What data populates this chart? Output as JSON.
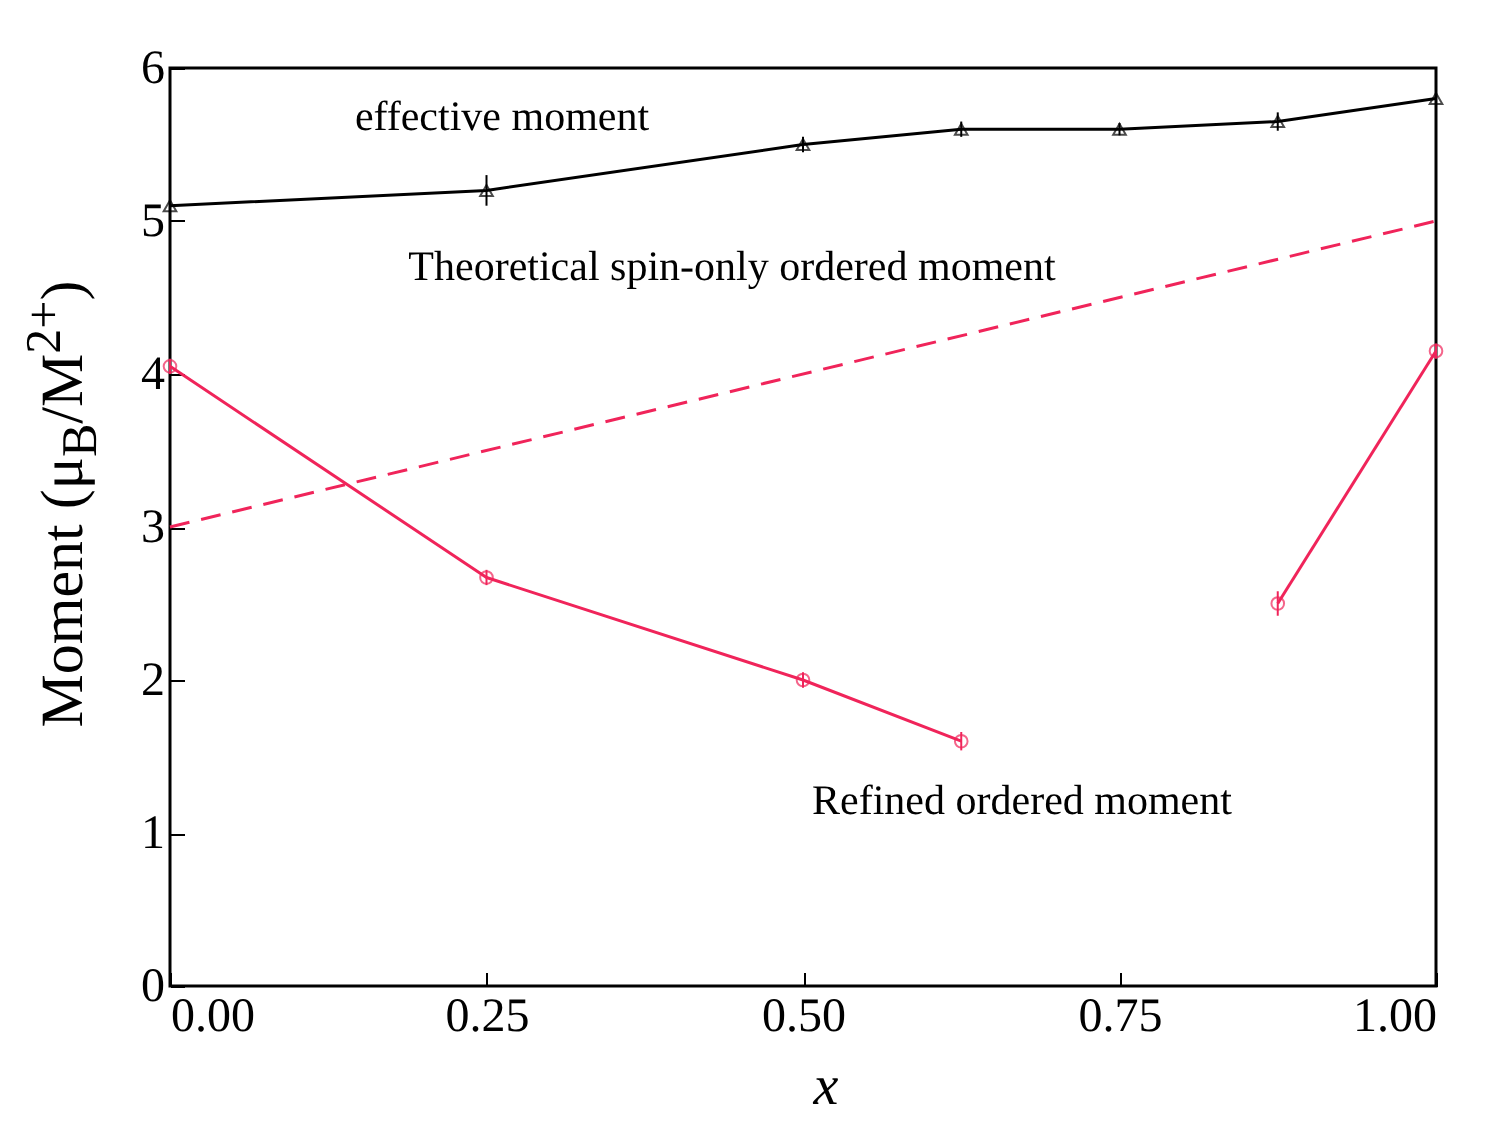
{
  "chart_data": {
    "type": "line",
    "xlabel": "x",
    "ylabel": "Moment (μ$_{B}$/M$^{2+}$)",
    "x": [
      0,
      0.25,
      0.5,
      0.625,
      0.75,
      0.875,
      1
    ],
    "series": [
      {
        "name": "effective moment",
        "color": "#000000",
        "marker": "triangle",
        "values": [
          5.1,
          5.2,
          5.5,
          5.6,
          5.6,
          5.65,
          5.8
        ],
        "errors": [
          0.05,
          0.1,
          0.05,
          0.05,
          0.04,
          0.06,
          0.05
        ]
      },
      {
        "name": "Theoretical spin-only ordered moment",
        "color": "#f0245a",
        "marker": "none",
        "line_style": "dashed",
        "x": [
          0,
          1
        ],
        "values": [
          3,
          5
        ]
      },
      {
        "name": "Refined ordered moment",
        "color": "#f0245a",
        "marker": "circle",
        "values": [
          4.05,
          2.67,
          2.0,
          1.6,
          null,
          2.5,
          4.15
        ],
        "errors": [
          0.05,
          0.05,
          0.05,
          0.06,
          null,
          0.08,
          0.05
        ]
      }
    ],
    "xlim": [
      0,
      1
    ],
    "ylim": [
      0,
      6
    ],
    "xticks": [
      {
        "value": 0,
        "label": "0.00"
      },
      {
        "value": 0.25,
        "label": "0.25"
      },
      {
        "value": 0.5,
        "label": "0.50"
      },
      {
        "value": 0.75,
        "label": "0.75"
      },
      {
        "value": 1,
        "label": "1.00"
      }
    ],
    "yticks": [
      0,
      1,
      2,
      3,
      4,
      5,
      6
    ],
    "grid": false
  }
}
